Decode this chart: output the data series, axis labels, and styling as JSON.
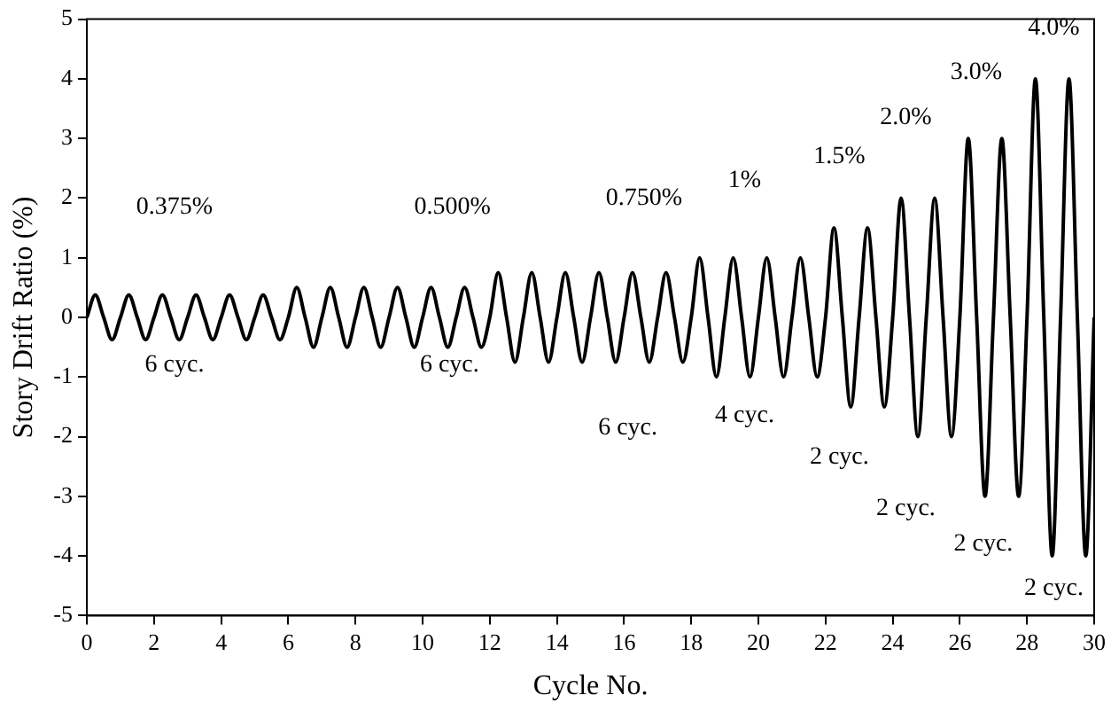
{
  "chart_data": {
    "type": "line",
    "xlabel": "Cycle No.",
    "ylabel": "Story Drift Ratio (%)",
    "xlim": [
      0,
      30
    ],
    "xticks": [
      0,
      2,
      4,
      6,
      8,
      10,
      12,
      14,
      16,
      18,
      20,
      22,
      24,
      26,
      28,
      30
    ],
    "ylim": [
      -5,
      5
    ],
    "yticks": [
      -5,
      -4,
      -3,
      -2,
      -1,
      0,
      1,
      2,
      3,
      4,
      5
    ],
    "grid": false,
    "legend": false,
    "marker": "none",
    "line_style": "solid",
    "series": [
      {
        "color": "#000000",
        "x": [
          0,
          0.25,
          0.5,
          0.75,
          1,
          1.25,
          1.5,
          1.75,
          2,
          2.25,
          2.5,
          2.75,
          3,
          3.25,
          3.5,
          3.75,
          4,
          4.25,
          4.5,
          4.75,
          5,
          5.25,
          5.5,
          5.75,
          6,
          6.25,
          6.5,
          6.75,
          7,
          7.25,
          7.5,
          7.75,
          8,
          8.25,
          8.5,
          8.75,
          9,
          9.25,
          9.5,
          9.75,
          10,
          10.25,
          10.5,
          10.75,
          11,
          11.25,
          11.5,
          11.75,
          12,
          12.25,
          12.5,
          12.75,
          13,
          13.25,
          13.5,
          13.75,
          14,
          14.25,
          14.5,
          14.75,
          15,
          15.25,
          15.5,
          15.75,
          16,
          16.25,
          16.5,
          16.75,
          17,
          17.25,
          17.5,
          17.75,
          18,
          18.25,
          18.5,
          18.75,
          19,
          19.25,
          19.5,
          19.75,
          20,
          20.25,
          20.5,
          20.75,
          21,
          21.25,
          21.5,
          21.75,
          22,
          22.25,
          22.5,
          22.75,
          23,
          23.25,
          23.5,
          23.75,
          24,
          24.25,
          24.5,
          24.75,
          25,
          25.25,
          25.5,
          25.75,
          26,
          26.25,
          26.5,
          26.75,
          27,
          27.25,
          27.5,
          27.75,
          28,
          28.25,
          28.5,
          28.75,
          29,
          29.25,
          29.5,
          29.75,
          30
        ],
        "values": [
          0,
          0.375,
          0,
          -0.375,
          0,
          0.375,
          0,
          -0.375,
          0,
          0.375,
          0,
          -0.375,
          0,
          0.375,
          0,
          -0.375,
          0,
          0.375,
          0,
          -0.375,
          0,
          0.375,
          0,
          -0.375,
          0,
          0.5,
          0,
          -0.5,
          0,
          0.5,
          0,
          -0.5,
          0,
          0.5,
          0,
          -0.5,
          0,
          0.5,
          0,
          -0.5,
          0,
          0.5,
          0,
          -0.5,
          0,
          0.5,
          0,
          -0.5,
          0,
          0.75,
          0,
          -0.75,
          0,
          0.75,
          0,
          -0.75,
          0,
          0.75,
          0,
          -0.75,
          0,
          0.75,
          0,
          -0.75,
          0,
          0.75,
          0,
          -0.75,
          0,
          0.75,
          0,
          -0.75,
          0,
          1,
          0,
          -1,
          0,
          1,
          0,
          -1,
          0,
          1,
          0,
          -1,
          0,
          1,
          0,
          -1,
          0,
          1.5,
          0,
          -1.5,
          0,
          1.5,
          0,
          -1.5,
          0,
          2,
          0,
          -2,
          0,
          2,
          0,
          -2,
          0,
          3,
          0,
          -3,
          0,
          3,
          0,
          -3,
          0,
          4,
          0,
          -4,
          0,
          4,
          0,
          -4,
          0
        ]
      }
    ],
    "annotations": [
      "0.375%",
      "0.500%",
      "0.750%",
      "1%",
      "1.5%",
      "2.0%",
      "3.0%",
      "4.0%",
      "6 cyc.",
      "6 cyc.",
      "6 cyc.",
      "4 cyc.",
      "2 cyc.",
      "2 cyc.",
      "2 cyc.",
      "2 cyc."
    ]
  }
}
